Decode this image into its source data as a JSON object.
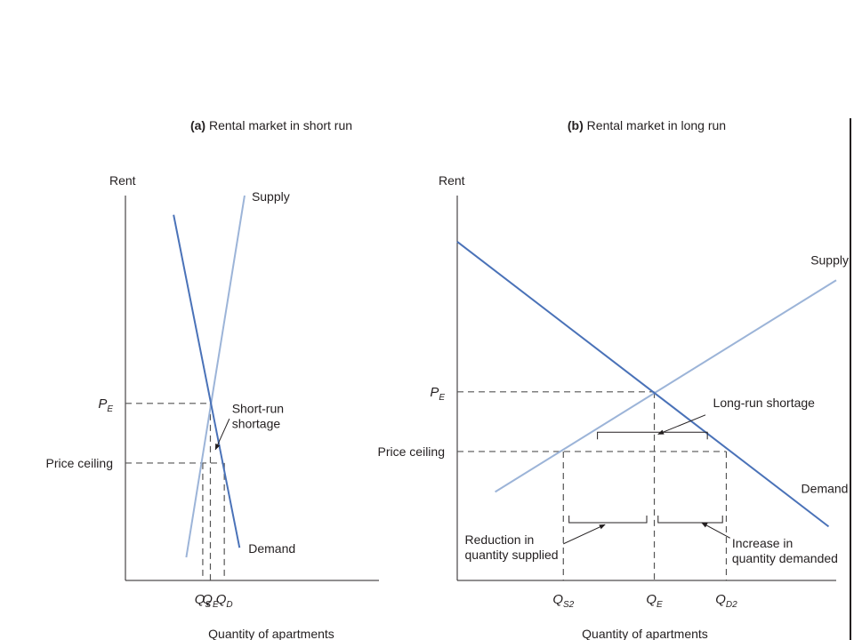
{
  "colors": {
    "demand": "#4a72b8",
    "supply": "#9cb4d8",
    "axis": "#231f20",
    "dashed": "#555555",
    "text": "#231f20"
  },
  "chart_data": [
    {
      "type": "line",
      "panel_label": "(a)",
      "title": "Rental market in short run",
      "ylabel": "Rent",
      "xlabel": "Quantity of apartments",
      "xlim": [
        0,
        10
      ],
      "ylim": [
        0,
        10
      ],
      "series": [
        {
          "name": "Supply",
          "role": "supply",
          "x": [
            2.4,
            4.7
          ],
          "y": [
            0.6,
            10
          ]
        },
        {
          "name": "Demand",
          "role": "demand",
          "x": [
            1.9,
            4.5
          ],
          "y": [
            9.5,
            0.85
          ]
        }
      ],
      "y_markers": [
        {
          "label_main": "P",
          "label_sub": "E",
          "y": 4.6,
          "x_to": 3.3
        },
        {
          "label_main": "Price ceiling",
          "label_sub": "",
          "y": 3.05,
          "x_to": 3.8
        }
      ],
      "x_markers": [
        {
          "label_main": "Q",
          "label_sub": "S",
          "x": 3.05,
          "y_to": 3.05
        },
        {
          "label_main": "Q",
          "label_sub": "E",
          "x": 3.35,
          "y_to": 4.6
        },
        {
          "label_main": "Q",
          "label_sub": "D",
          "x": 3.9,
          "y_to": 3.05
        }
      ],
      "annotations": [
        {
          "lines": [
            "Short-run",
            "shortage"
          ],
          "text_x": 4.2,
          "text_y": 4.35,
          "arrow_from": [
            4.1,
            4.2
          ],
          "arrow_to": [
            3.55,
            3.4
          ]
        }
      ]
    },
    {
      "type": "line",
      "panel_label": "(b)",
      "title": "Rental market in long run",
      "ylabel": "Rent",
      "xlabel": "Quantity of apartments",
      "xlim": [
        0,
        10
      ],
      "ylim": [
        0,
        10
      ],
      "series": [
        {
          "name": "Supply",
          "role": "supply",
          "x": [
            1.0,
            10.0
          ],
          "y": [
            2.3,
            7.8
          ]
        },
        {
          "name": "Demand",
          "role": "demand",
          "x": [
            0,
            9.8
          ],
          "y": [
            8.8,
            1.4
          ]
        }
      ],
      "y_markers": [
        {
          "label_main": "P",
          "label_sub": "E",
          "y": 4.9,
          "x_to": 5.2
        },
        {
          "label_main": "Price ceiling",
          "label_sub": "",
          "y": 3.35,
          "x_to": 7.1
        }
      ],
      "x_markers": [
        {
          "label_main": "Q",
          "label_sub": "S2",
          "x": 2.8,
          "y_to": 3.35
        },
        {
          "label_main": "Q",
          "label_sub": "E",
          "x": 5.2,
          "y_to": 4.9
        },
        {
          "label_main": "Q",
          "label_sub": "D2",
          "x": 7.1,
          "y_to": 3.35
        }
      ],
      "annotations": [
        {
          "lines": [
            "Long-run shortage"
          ],
          "text_x": 6.75,
          "text_y": 4.5,
          "arrow_from": [
            6.55,
            4.3
          ],
          "arrow_to": [
            5.3,
            3.8
          ]
        },
        {
          "lines": [
            "Reduction in",
            "quantity supplied"
          ],
          "text_x": 0.2,
          "text_y": 0.95,
          "arrow_from": [
            2.8,
            0.95
          ],
          "arrow_to": [
            3.9,
            1.45
          ]
        },
        {
          "lines": [
            "Increase in",
            "quantity demanded"
          ],
          "text_x": 7.25,
          "text_y": 0.85,
          "arrow_from": [
            7.2,
            1.1
          ],
          "arrow_to": [
            6.45,
            1.5
          ]
        }
      ],
      "brackets": [
        {
          "x1": 2.95,
          "x2": 5.0,
          "y": 1.5,
          "direction": "down"
        },
        {
          "x1": 5.3,
          "x2": 7.0,
          "y": 1.5,
          "direction": "down"
        },
        {
          "x1": 3.7,
          "x2": 6.6,
          "y": 3.85,
          "direction": "up"
        }
      ]
    }
  ]
}
